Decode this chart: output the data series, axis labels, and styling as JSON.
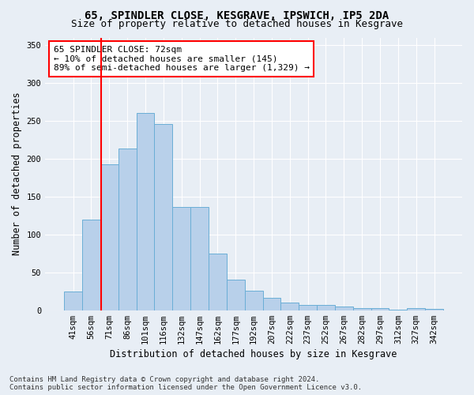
{
  "title_line1": "65, SPINDLER CLOSE, KESGRAVE, IPSWICH, IP5 2DA",
  "title_line2": "Size of property relative to detached houses in Kesgrave",
  "xlabel": "Distribution of detached houses by size in Kesgrave",
  "ylabel": "Number of detached properties",
  "categories": [
    "41sqm",
    "56sqm",
    "71sqm",
    "86sqm",
    "101sqm",
    "116sqm",
    "132sqm",
    "147sqm",
    "162sqm",
    "177sqm",
    "192sqm",
    "207sqm",
    "222sqm",
    "237sqm",
    "252sqm",
    "267sqm",
    "282sqm",
    "297sqm",
    "312sqm",
    "327sqm",
    "342sqm"
  ],
  "values": [
    25,
    120,
    193,
    213,
    260,
    246,
    136,
    136,
    75,
    40,
    26,
    16,
    10,
    7,
    7,
    5,
    3,
    3,
    1,
    3,
    2
  ],
  "bar_color": "#b8d0ea",
  "bar_edge_color": "#6aaed6",
  "vline_x_index": 2,
  "vline_color": "red",
  "annotation_title": "65 SPINDLER CLOSE: 72sqm",
  "annotation_line2": "← 10% of detached houses are smaller (145)",
  "annotation_line3": "89% of semi-detached houses are larger (1,329) →",
  "annotation_box_facecolor": "white",
  "annotation_border_color": "red",
  "ylim": [
    0,
    360
  ],
  "yticks": [
    0,
    50,
    100,
    150,
    200,
    250,
    300,
    350
  ],
  "bg_color": "#e8eef5",
  "plot_bg_color": "#e8eef5",
  "grid_color": "white",
  "footer_line1": "Contains HM Land Registry data © Crown copyright and database right 2024.",
  "footer_line2": "Contains public sector information licensed under the Open Government Licence v3.0.",
  "title_fontsize": 10,
  "subtitle_fontsize": 9,
  "axis_label_fontsize": 8.5,
  "tick_fontsize": 7.5,
  "annotation_fontsize": 8,
  "footer_fontsize": 6.5,
  "vline_position": 1.53
}
